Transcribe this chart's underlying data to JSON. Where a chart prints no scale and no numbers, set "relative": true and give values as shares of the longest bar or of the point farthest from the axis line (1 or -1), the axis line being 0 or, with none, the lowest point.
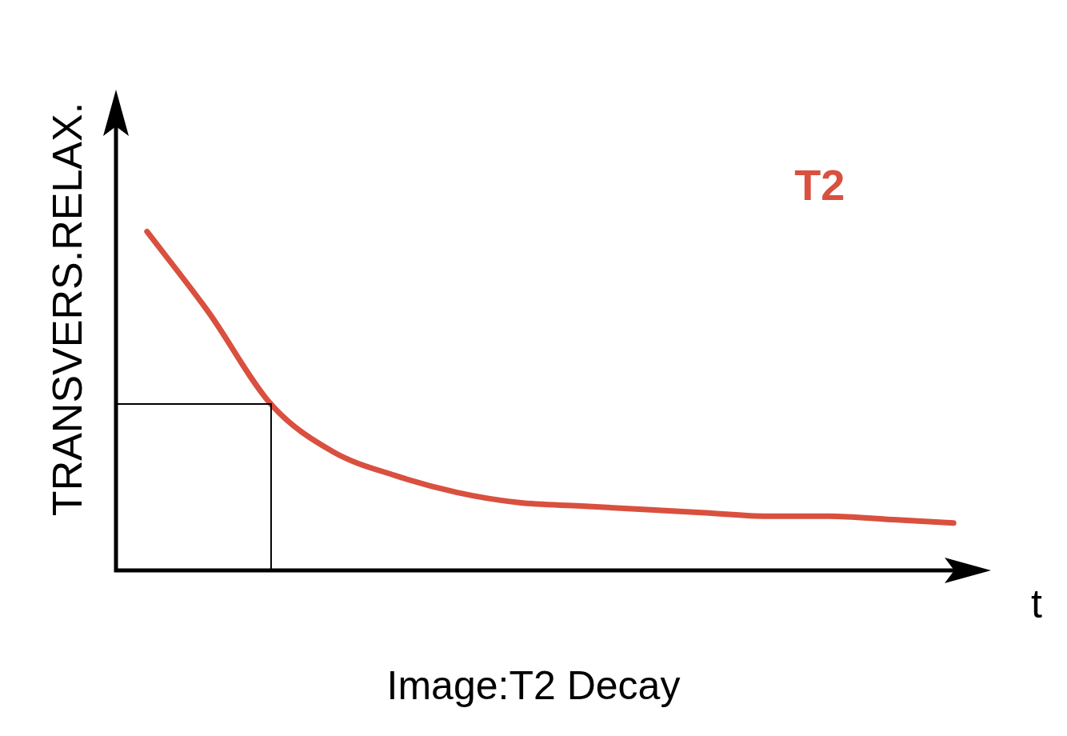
{
  "chart_data": {
    "type": "line",
    "relative": true,
    "ylabel": "TRANSVERS.RELAX.",
    "xlabel": "t",
    "categories": [
      null,
      null,
      null,
      null,
      null,
      null,
      null,
      null,
      null,
      null,
      null,
      null,
      null,
      null
    ],
    "series": [
      {
        "name": "T2",
        "color": "#d9503f",
        "values": [
          1.0,
          0.76,
          0.49,
          0.35,
          0.28,
          0.23,
          0.2,
          0.19,
          0.18,
          0.17,
          0.16,
          0.16,
          0.15,
          0.14
        ]
      }
    ],
    "annotations": [
      "Image:T2 Decay"
    ],
    "grid": false,
    "legend": false
  }
}
